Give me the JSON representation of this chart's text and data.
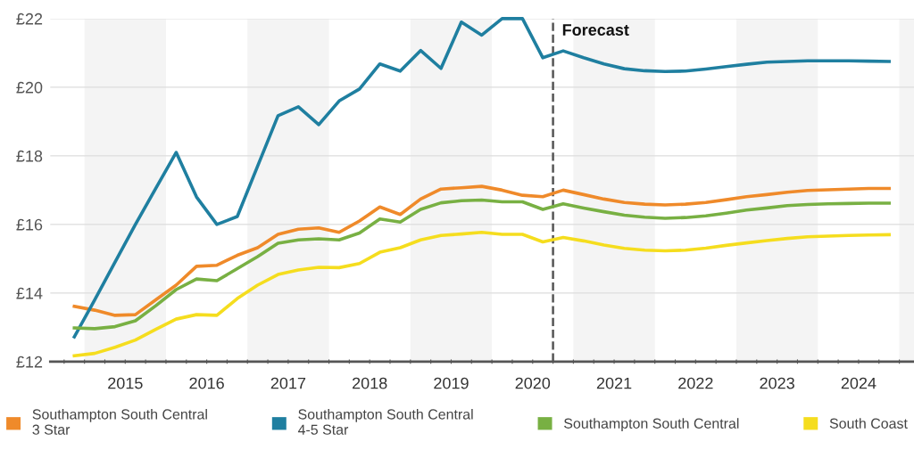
{
  "chart_data": {
    "type": "line",
    "x": [
      2014.875,
      2015.125,
      2015.375,
      2015.625,
      2015.875,
      2016.125,
      2016.375,
      2016.625,
      2016.875,
      2017.125,
      2017.375,
      2017.625,
      2017.875,
      2018.125,
      2018.375,
      2018.625,
      2018.875,
      2019.125,
      2019.375,
      2019.625,
      2019.875,
      2020.125,
      2020.375,
      2020.625,
      2020.875,
      2021.125,
      2021.375,
      2021.625,
      2021.875,
      2022.125,
      2022.375,
      2022.625,
      2022.875,
      2023.125,
      2023.375,
      2023.625,
      2023.875,
      2024.125,
      2024.375,
      2024.625,
      2024.875
    ],
    "series": [
      {
        "name": "Southampton South Central\n3 Star",
        "color": "#ef8a2a",
        "values": [
          13.61,
          13.5,
          13.35,
          13.37,
          13.8,
          14.23,
          14.78,
          14.81,
          15.1,
          15.32,
          15.71,
          15.86,
          15.9,
          15.77,
          16.1,
          16.51,
          16.29,
          16.74,
          17.03,
          17.07,
          17.11,
          17.0,
          16.85,
          16.81,
          17.0,
          16.87,
          16.74,
          16.64,
          16.59,
          16.57,
          16.59,
          16.64,
          16.72,
          16.81,
          16.87,
          16.94,
          16.99,
          17.01,
          17.03,
          17.05,
          17.05
        ]
      },
      {
        "name": "Southampton South Central\n4-5 Star",
        "color": "#1f7fa0",
        "values": [
          12.72,
          13.8,
          14.9,
          16.0,
          17.05,
          18.1,
          16.8,
          16.0,
          16.23,
          17.7,
          19.17,
          19.43,
          18.91,
          19.6,
          19.95,
          20.68,
          20.47,
          21.07,
          20.55,
          21.9,
          21.52,
          22.0,
          22.0,
          20.86,
          21.06,
          20.86,
          20.68,
          20.54,
          20.48,
          20.46,
          20.47,
          20.53,
          20.6,
          20.67,
          20.73,
          20.75,
          20.77,
          20.77,
          20.77,
          20.76,
          20.75
        ]
      },
      {
        "name": "Southampton South Central",
        "color": "#78b043",
        "values": [
          12.98,
          12.96,
          13.02,
          13.19,
          13.63,
          14.1,
          14.41,
          14.36,
          14.71,
          15.06,
          15.45,
          15.55,
          15.58,
          15.55,
          15.75,
          16.16,
          16.07,
          16.44,
          16.63,
          16.69,
          16.71,
          16.66,
          16.66,
          16.44,
          16.6,
          16.48,
          16.37,
          16.27,
          16.21,
          16.18,
          16.2,
          16.25,
          16.33,
          16.42,
          16.48,
          16.55,
          16.58,
          16.6,
          16.61,
          16.62,
          16.62
        ]
      },
      {
        "name": "South Coast",
        "color": "#f5dd1e",
        "values": [
          12.17,
          12.24,
          12.42,
          12.63,
          12.94,
          13.24,
          13.37,
          13.35,
          13.84,
          14.23,
          14.54,
          14.67,
          14.75,
          14.74,
          14.86,
          15.19,
          15.32,
          15.55,
          15.68,
          15.72,
          15.77,
          15.71,
          15.71,
          15.49,
          15.62,
          15.52,
          15.4,
          15.3,
          15.25,
          15.23,
          15.25,
          15.31,
          15.39,
          15.46,
          15.53,
          15.59,
          15.64,
          15.66,
          15.68,
          15.69,
          15.7
        ]
      }
    ],
    "xlim": [
      2014.58,
      2025.18
    ],
    "xticks": [
      {
        "value": 2014.75,
        "label": null
      },
      {
        "value": 2015,
        "label": null
      },
      {
        "value": 2015.25,
        "label": null
      },
      {
        "value": 2015.5,
        "label": "2015"
      },
      {
        "value": 2015.75,
        "label": null
      },
      {
        "value": 2016,
        "label": null
      },
      {
        "value": 2016.25,
        "label": null
      },
      {
        "value": 2016.5,
        "label": "2016"
      },
      {
        "value": 2016.75,
        "label": null
      },
      {
        "value": 2017,
        "label": null
      },
      {
        "value": 2017.25,
        "label": null
      },
      {
        "value": 2017.5,
        "label": "2017"
      },
      {
        "value": 2017.75,
        "label": null
      },
      {
        "value": 2018,
        "label": null
      },
      {
        "value": 2018.25,
        "label": null
      },
      {
        "value": 2018.5,
        "label": "2018"
      },
      {
        "value": 2018.75,
        "label": null
      },
      {
        "value": 2019,
        "label": null
      },
      {
        "value": 2019.25,
        "label": null
      },
      {
        "value": 2019.5,
        "label": "2019"
      },
      {
        "value": 2019.75,
        "label": null
      },
      {
        "value": 2020,
        "label": null
      },
      {
        "value": 2020.25,
        "label": null
      },
      {
        "value": 2020.5,
        "label": "2020"
      },
      {
        "value": 2020.75,
        "label": null
      },
      {
        "value": 2021,
        "label": null
      },
      {
        "value": 2021.25,
        "label": null
      },
      {
        "value": 2021.5,
        "label": "2021"
      },
      {
        "value": 2021.75,
        "label": null
      },
      {
        "value": 2022,
        "label": null
      },
      {
        "value": 2022.25,
        "label": null
      },
      {
        "value": 2022.5,
        "label": "2022"
      },
      {
        "value": 2022.75,
        "label": null
      },
      {
        "value": 2023,
        "label": null
      },
      {
        "value": 2023.25,
        "label": null
      },
      {
        "value": 2023.5,
        "label": "2023"
      },
      {
        "value": 2023.75,
        "label": null
      },
      {
        "value": 2024,
        "label": null
      },
      {
        "value": 2024.25,
        "label": null
      },
      {
        "value": 2024.5,
        "label": "2024"
      },
      {
        "value": 2024.75,
        "label": null
      },
      {
        "value": 2025,
        "label": null
      }
    ],
    "ylim": [
      12,
      22
    ],
    "yticks": [
      {
        "value": 12,
        "label": "£12"
      },
      {
        "value": 14,
        "label": "£14"
      },
      {
        "value": 16,
        "label": "£16"
      },
      {
        "value": 18,
        "label": "£18"
      },
      {
        "value": 20,
        "label": "£20"
      },
      {
        "value": 22,
        "label": "£22"
      }
    ],
    "grid": "y",
    "legend": "bottom",
    "marker": "none",
    "line_style": "solid",
    "ref_lines": [
      {
        "axis": "x",
        "value": 2020.75,
        "label": "Forecast",
        "color": "#555555",
        "line_style": "dashed"
      }
    ],
    "bands": [
      {
        "axis": "x",
        "from": 2015,
        "to": 2016,
        "color": "#f4f4f4"
      },
      {
        "axis": "x",
        "from": 2017,
        "to": 2018,
        "color": "#f4f4f4"
      },
      {
        "axis": "x",
        "from": 2019,
        "to": 2020,
        "color": "#f4f4f4"
      },
      {
        "axis": "x",
        "from": 2021,
        "to": 2022,
        "color": "#f4f4f4"
      },
      {
        "axis": "x",
        "from": 2023,
        "to": 2024,
        "color": "#f4f4f4"
      },
      {
        "axis": "x",
        "from": 2025,
        "to": 2025.18,
        "color": "#f4f4f4"
      }
    ]
  }
}
